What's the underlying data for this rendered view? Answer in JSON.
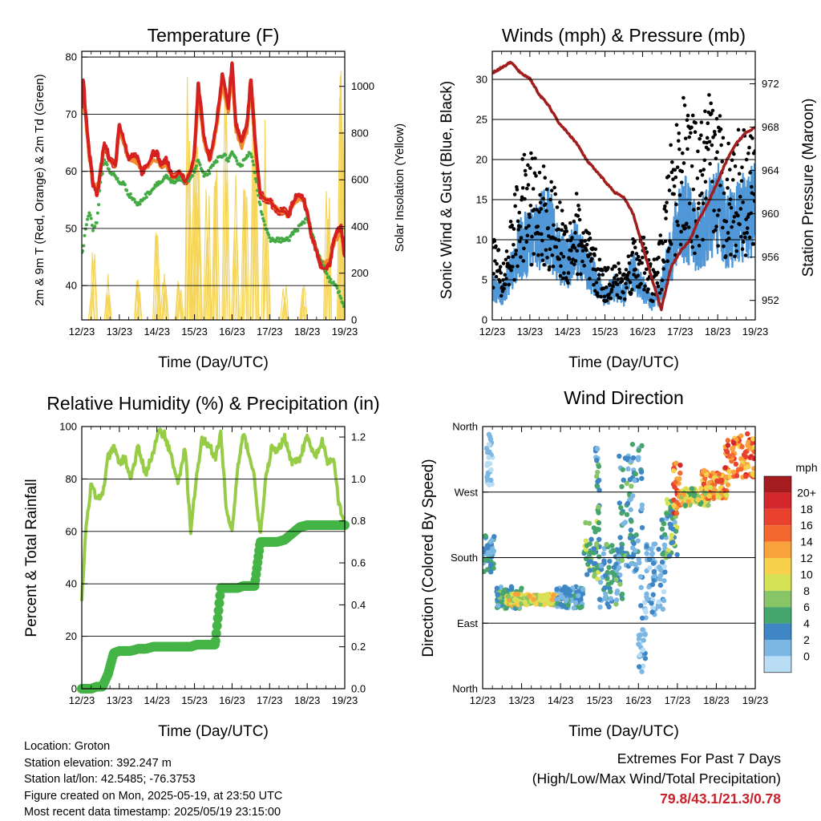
{
  "colors": {
    "red": "#d62020",
    "orange": "#f08a2a",
    "green": "#44aa44",
    "yellow": "#f5d55a",
    "maroon": "#a01e1e",
    "blue": "#4f97d6",
    "black": "#000000",
    "rh": "#96cc46",
    "rain": "#44b446",
    "accent_red": "#c8202a"
  },
  "time_ticks": [
    "12/23",
    "13/23",
    "14/23",
    "15/23",
    "16/23",
    "17/23",
    "18/23",
    "19/23"
  ],
  "chart_data": [
    {
      "id": "temperature",
      "type": "line",
      "title": "Temperature (F)",
      "xlabel": "Time (Day/UTC)",
      "ylabel": "2m & 9m T (Red, Orange) & 2m Td (Green)",
      "y2label": "Solar Insolation (Yellow)",
      "ylim": [
        34,
        81
      ],
      "y2lim": [
        0,
        1150
      ],
      "yticks": [
        40,
        50,
        60,
        70,
        80
      ],
      "y2ticks": [
        0,
        200,
        400,
        600,
        800,
        1000
      ],
      "x": [
        0,
        0.03,
        0.1,
        0.2,
        0.3,
        0.4,
        0.5,
        0.6,
        0.75,
        0.9,
        1.0,
        1.1,
        1.25,
        1.4,
        1.5,
        1.6,
        1.75,
        1.9,
        2.0,
        2.1,
        2.25,
        2.4,
        2.5,
        2.6,
        2.75,
        2.9,
        3.0,
        3.1,
        3.25,
        3.4,
        3.5,
        3.6,
        3.75,
        3.9,
        4.0,
        4.1,
        4.25,
        4.4,
        4.5,
        4.6,
        4.75,
        4.9,
        5.0,
        5.1,
        5.25,
        5.4,
        5.5,
        5.6,
        5.75,
        5.9,
        6.0,
        6.1,
        6.25,
        6.4,
        6.5,
        6.6,
        6.75,
        6.9,
        7.0
      ],
      "series": [
        {
          "name": "2m T",
          "color": "#d62020",
          "values": [
            71,
            77,
            70,
            63,
            58,
            56,
            60,
            65,
            62,
            61,
            68,
            66,
            62,
            63,
            62,
            60,
            61,
            63,
            63,
            61,
            62,
            59,
            59,
            60,
            58,
            60,
            63,
            75,
            66,
            62,
            65,
            69,
            77,
            71,
            79,
            68,
            65,
            68,
            76,
            66,
            56,
            55,
            55,
            54,
            53,
            53,
            52,
            54,
            56,
            55,
            53,
            49,
            46,
            43,
            43,
            44,
            49,
            50,
            45
          ]
        },
        {
          "name": "9m T",
          "color": "#f08a2a",
          "values": [
            70,
            76,
            69,
            62,
            58,
            57,
            60,
            64,
            62,
            61,
            67,
            65,
            62,
            62,
            61,
            60,
            61,
            62,
            62,
            61,
            61,
            59,
            59,
            60,
            58,
            60,
            62,
            73,
            65,
            62,
            64,
            68,
            75,
            70,
            77,
            67,
            64,
            67,
            74,
            65,
            56,
            55,
            55,
            54,
            53,
            53,
            52,
            54,
            55,
            55,
            53,
            49,
            46,
            44,
            44,
            45,
            48,
            49,
            45
          ]
        },
        {
          "name": "2m Td",
          "color": "#44aa44",
          "values": [
            46,
            46,
            50,
            53,
            50,
            51,
            58,
            62,
            60,
            59,
            58,
            58,
            56,
            55,
            54,
            55,
            56,
            57,
            58,
            58,
            59,
            58,
            58,
            59,
            58,
            59,
            60,
            62,
            59,
            60,
            61,
            62,
            63,
            62,
            63,
            62,
            61,
            63,
            63,
            60,
            54,
            50,
            48,
            48,
            48,
            48,
            48,
            49,
            50,
            51,
            52,
            50,
            46,
            44,
            42,
            41,
            40,
            38,
            36
          ]
        }
      ],
      "insolation": {
        "name": "Solar Insolation",
        "color": "#f5d55a",
        "peaks": [
          {
            "day": 0.3,
            "max": 300
          },
          {
            "day": 0.7,
            "max": 200
          },
          {
            "day": 1.5,
            "max": 180
          },
          {
            "day": 2.0,
            "max": 380
          },
          {
            "day": 2.2,
            "max": 200
          },
          {
            "day": 2.6,
            "max": 280
          },
          {
            "day": 2.85,
            "max": 1080
          },
          {
            "day": 3.0,
            "max": 950
          },
          {
            "day": 3.1,
            "max": 800
          },
          {
            "day": 3.35,
            "max": 650
          },
          {
            "day": 3.55,
            "max": 750
          },
          {
            "day": 3.85,
            "max": 1050
          },
          {
            "day": 4.1,
            "max": 720
          },
          {
            "day": 4.35,
            "max": 600
          },
          {
            "day": 4.6,
            "max": 1020
          },
          {
            "day": 4.9,
            "max": 950
          },
          {
            "day": 5.4,
            "max": 180
          },
          {
            "day": 5.9,
            "max": 150
          },
          {
            "day": 6.55,
            "max": 600
          },
          {
            "day": 6.9,
            "max": 1150
          },
          {
            "day": 6.95,
            "max": 850
          }
        ]
      }
    },
    {
      "id": "winds",
      "type": "line",
      "title": "Winds (mph) & Pressure (mb)",
      "xlabel": "Time (Day/UTC)",
      "ylabel": "Sonic Wind & Gust (Blue, Black)",
      "y2label": "Station Pressure (Maroon)",
      "ylim": [
        0,
        33.5
      ],
      "y2lim": [
        950.2,
        975
      ],
      "yticks": [
        0,
        5,
        10,
        15,
        20,
        25,
        30
      ],
      "y2ticks": [
        952,
        956,
        960,
        964,
        968,
        972
      ],
      "x": [
        0,
        0.25,
        0.5,
        0.75,
        1.0,
        1.25,
        1.5,
        1.75,
        2.0,
        2.25,
        2.5,
        2.75,
        3.0,
        3.25,
        3.5,
        3.75,
        4.0,
        4.25,
        4.5,
        4.75,
        5.0,
        5.25,
        5.5,
        5.75,
        6.0,
        6.25,
        6.5,
        6.75,
        7.0
      ],
      "series": [
        {
          "name": "Pressure",
          "color": "#a01e1e",
          "values": [
            973.0,
            973.5,
            974.0,
            973.0,
            972.5,
            971.0,
            970.0,
            968.5,
            967.5,
            966.5,
            965.0,
            964.0,
            963.0,
            962.0,
            961.5,
            960.0,
            957.0,
            954.0,
            951.2,
            955.0,
            956.5,
            957.5,
            959.5,
            961.0,
            963.0,
            965.0,
            966.5,
            967.5,
            968.0
          ]
        },
        {
          "name": "Wind",
          "color": "#4f97d6",
          "values": [
            4.0,
            3.0,
            6.0,
            9.0,
            10.0,
            11.0,
            12.0,
            8.0,
            7.0,
            9.0,
            6.5,
            5.0,
            3.0,
            4.0,
            3.0,
            6.0,
            4.0,
            2.0,
            4.0,
            8.0,
            13.0,
            12.0,
            10.0,
            12.0,
            14.0,
            11.0,
            12.0,
            13.0,
            14.0
          ]
        },
        {
          "name": "Gust",
          "color": "#000000",
          "values": [
            12.0,
            6.0,
            12.0,
            18.0,
            20.0,
            18.0,
            17.0,
            14.0,
            12.0,
            15.0,
            11.0,
            8.0,
            6.0,
            7.0,
            6.0,
            10.0,
            10.0,
            6.0,
            10.0,
            20.0,
            26.0,
            24.0,
            22.0,
            26.0,
            25.0,
            21.0,
            22.0,
            23.0,
            21.0
          ]
        }
      ]
    },
    {
      "id": "humidity",
      "type": "line",
      "title": "Relative Humidity (%) & Precipitation (in)",
      "xlabel": "Time (Day/UTC)",
      "ylabel": "Percent & Total Rainfall",
      "ylim": [
        0,
        100
      ],
      "y2lim": [
        0,
        1.25
      ],
      "yticks": [
        0,
        20,
        40,
        60,
        80,
        100
      ],
      "y2ticks": [
        0.0,
        0.2,
        0.4,
        0.6,
        0.8,
        1.0,
        1.2
      ],
      "x": [
        0,
        0.1,
        0.25,
        0.4,
        0.55,
        0.7,
        0.85,
        1.0,
        1.15,
        1.3,
        1.5,
        1.7,
        1.9,
        2.05,
        2.2,
        2.4,
        2.55,
        2.75,
        2.9,
        3.05,
        3.2,
        3.4,
        3.55,
        3.7,
        3.85,
        4.0,
        4.15,
        4.3,
        4.45,
        4.6,
        4.75,
        4.9,
        5.05,
        5.2,
        5.4,
        5.6,
        5.8,
        6.0,
        6.2,
        6.4,
        6.55,
        6.7,
        6.85,
        7.0
      ],
      "series": [
        {
          "name": "Relative Humidity",
          "color": "#96cc46",
          "values": [
            33,
            60,
            78,
            72,
            74,
            88,
            92,
            86,
            88,
            80,
            92,
            82,
            90,
            98,
            97,
            88,
            78,
            92,
            60,
            80,
            95,
            93,
            88,
            97,
            68,
            60,
            84,
            97,
            90,
            80,
            58,
            80,
            92,
            90,
            96,
            86,
            88,
            96,
            88,
            94,
            86,
            88,
            70,
            62
          ]
        },
        {
          "name": "Total Precipitation",
          "color": "#44b446",
          "values": [
            0.0,
            0.0,
            0.0,
            0.01,
            0.01,
            0.07,
            0.17,
            0.18,
            0.18,
            0.18,
            0.19,
            0.19,
            0.2,
            0.2,
            0.2,
            0.2,
            0.2,
            0.2,
            0.2,
            0.21,
            0.21,
            0.21,
            0.21,
            0.48,
            0.48,
            0.48,
            0.48,
            0.49,
            0.49,
            0.49,
            0.7,
            0.7,
            0.7,
            0.7,
            0.71,
            0.74,
            0.77,
            0.78,
            0.78,
            0.78,
            0.78,
            0.78,
            0.78,
            0.78
          ]
        }
      ]
    },
    {
      "id": "wind_direction",
      "type": "scatter",
      "title": "Wind Direction",
      "xlabel": "Time (Day/UTC)",
      "ylabel": "Direction (Colored By Speed)",
      "ylim": [
        0,
        360
      ],
      "ytick_labels": [
        "North",
        "East",
        "South",
        "West",
        "North"
      ],
      "ytick_values": [
        0,
        90,
        180,
        270,
        360
      ],
      "colorbar": {
        "title": "mph",
        "labels": [
          "20+",
          "18",
          "16",
          "14",
          "12",
          "10",
          "8",
          "6",
          "4",
          "2",
          "0"
        ],
        "colors": [
          "#a51c20",
          "#d2272b",
          "#e8422f",
          "#f2682e",
          "#f9a33c",
          "#f7d04c",
          "#d6e254",
          "#88c566",
          "#45a56c",
          "#3f86c5",
          "#7cb7e3",
          "#b8ddf4"
        ]
      },
      "clusters": [
        {
          "x0": 0.0,
          "x1": 0.3,
          "d0": 160,
          "d1": 210,
          "s0": 1,
          "s1": 6
        },
        {
          "x0": 0.1,
          "x1": 0.25,
          "d0": 280,
          "d1": 350,
          "s0": 0,
          "s1": 3
        },
        {
          "x0": 0.3,
          "x1": 1.0,
          "d0": 110,
          "d1": 140,
          "s0": 2,
          "s1": 8
        },
        {
          "x0": 0.6,
          "x1": 2.0,
          "d0": 115,
          "d1": 130,
          "s0": 8,
          "s1": 14
        },
        {
          "x0": 1.9,
          "x1": 2.6,
          "d0": 110,
          "d1": 140,
          "s0": 1,
          "s1": 6
        },
        {
          "x0": 2.6,
          "x1": 3.0,
          "d0": 150,
          "d1": 230,
          "s0": 3,
          "s1": 10
        },
        {
          "x0": 2.9,
          "x1": 3.0,
          "d0": 230,
          "d1": 340,
          "s0": 2,
          "s1": 8
        },
        {
          "x0": 3.0,
          "x1": 3.6,
          "d0": 110,
          "d1": 200,
          "s0": 1,
          "s1": 8
        },
        {
          "x0": 3.5,
          "x1": 3.9,
          "d0": 150,
          "d1": 320,
          "s0": 2,
          "s1": 8
        },
        {
          "x0": 3.8,
          "x1": 4.1,
          "d0": 130,
          "d1": 340,
          "s0": 1,
          "s1": 6
        },
        {
          "x0": 4.0,
          "x1": 4.2,
          "d0": 20,
          "d1": 120,
          "s0": 0,
          "s1": 4
        },
        {
          "x0": 4.2,
          "x1": 4.7,
          "d0": 100,
          "d1": 200,
          "s0": 0,
          "s1": 5
        },
        {
          "x0": 4.6,
          "x1": 5.0,
          "d0": 180,
          "d1": 260,
          "s0": 2,
          "s1": 10
        },
        {
          "x0": 4.9,
          "x1": 5.1,
          "d0": 240,
          "d1": 310,
          "s0": 12,
          "s1": 20
        },
        {
          "x0": 5.1,
          "x1": 5.8,
          "d0": 250,
          "d1": 275,
          "s0": 6,
          "s1": 14
        },
        {
          "x0": 5.6,
          "x1": 6.3,
          "d0": 260,
          "d1": 300,
          "s0": 10,
          "s1": 18
        },
        {
          "x0": 6.2,
          "x1": 7.0,
          "d0": 290,
          "d1": 350,
          "s0": 12,
          "s1": 20
        }
      ]
    }
  ],
  "footer": {
    "location": "Location: Groton",
    "elevation": "Station elevation: 392.247 m",
    "latlon": "Station lat/lon: 42.5485; -76.3753",
    "created": "Figure created on Mon, 2025-05-19, at 23:50 UTC",
    "timestamp": "Most recent data timestamp: 2025/05/19 23:15:00"
  },
  "extremes": {
    "title": "Extremes For Past 7 Days",
    "subtitle": "(High/Low/Max Wind/Total Precipitation)",
    "values": "79.8/43.1/21.3/0.78"
  }
}
